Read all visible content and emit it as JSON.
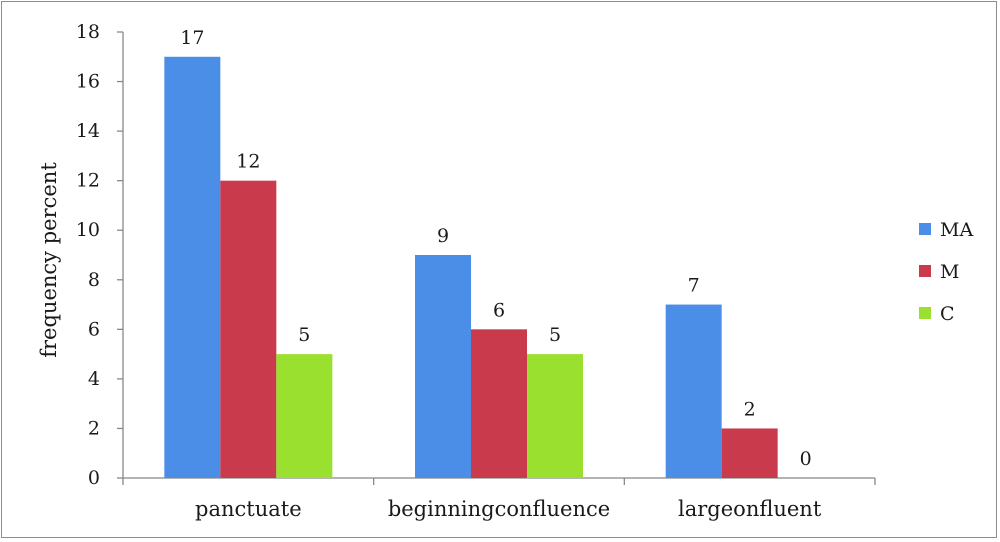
{
  "chart_data": {
    "type": "bar",
    "categories": [
      "panctuate",
      "beginningconfluence",
      "largeonfluent"
    ],
    "series": [
      {
        "name": "MA",
        "values": [
          17,
          9,
          7
        ],
        "color": "#4a8ee8"
      },
      {
        "name": "M",
        "values": [
          12,
          6,
          2
        ],
        "color": "#c93a4c"
      },
      {
        "name": "C",
        "values": [
          5,
          5,
          0
        ],
        "color": "#9ae02e"
      }
    ],
    "xlabel": "",
    "ylabel": "frequency percent",
    "ylim": [
      0,
      18
    ],
    "yticks": [
      0,
      2,
      4,
      6,
      8,
      10,
      12,
      14,
      16,
      18
    ],
    "grid": false,
    "legend": "right"
  }
}
